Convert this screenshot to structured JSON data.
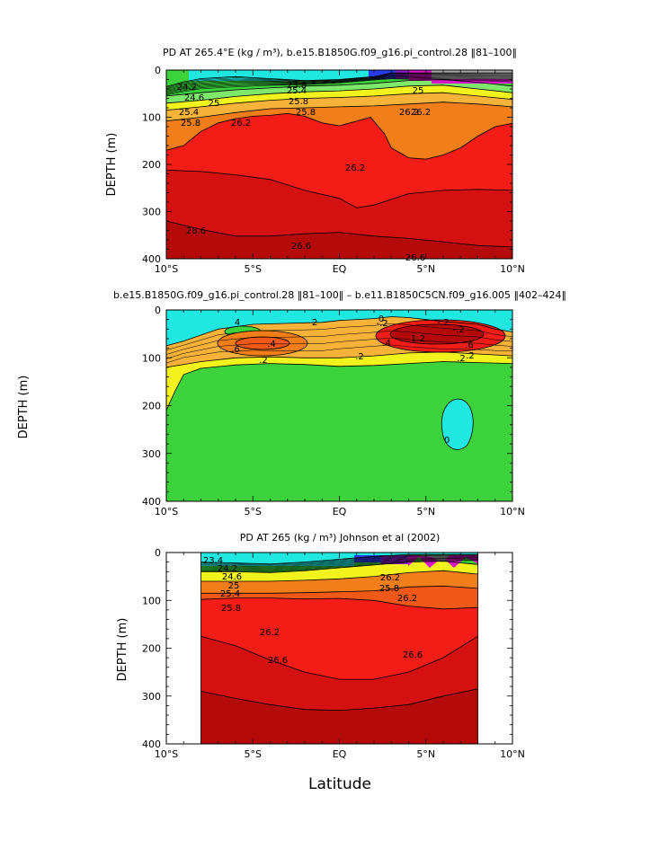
{
  "colors": {
    "gray": "#a8a8a8",
    "magenta": "#d815c8",
    "purple": "#8a1ec8",
    "blue": "#2a3cf0",
    "cyan": "#20e8e0",
    "green": "#3cd23c",
    "ltgreen": "#7ee86a",
    "yellow": "#f2f21c",
    "ltorange": "#f7b23a",
    "orange": "#f27e1a",
    "dkorange": "#f05818",
    "red": "#f41c16",
    "dkred": "#d41010",
    "dkred2": "#b40a0a"
  },
  "chart_data": [
    {
      "type": "contour",
      "title": "PD AT 265.4°E (kg / m³), b.e15.B1850G.f09_g16.pi_control.28 ‖81–100‖",
      "xlabel": "",
      "ylabel": "DEPTH (m)",
      "xlim": [
        -10,
        10
      ],
      "ylim": [
        400,
        0
      ],
      "x_ticks": [
        "10°S",
        "5°S",
        "EQ",
        "5°N",
        "10°N"
      ],
      "y_ticks": [
        "0",
        "100",
        "200",
        "300",
        "400"
      ],
      "contour_labels": [
        "23.8",
        "24.2",
        "24.6",
        "25",
        "25.4",
        "25.8",
        "26.2",
        "26.2",
        "26.2",
        "26.6",
        "26.6",
        "26.6",
        "25.4",
        "25.8",
        "25.8",
        "26.2",
        "25"
      ],
      "levels": [
        {
          "value": 26.6,
          "boundary": [
            [
              -10,
              320
            ],
            [
              -8,
              338
            ],
            [
              -6,
              352
            ],
            [
              -4,
              352
            ],
            [
              -2,
              347
            ],
            [
              0,
              344
            ],
            [
              2,
              352
            ],
            [
              4,
              357
            ],
            [
              6,
              364
            ],
            [
              8,
              372
            ],
            [
              10,
              375
            ]
          ]
        },
        {
          "value": 26.4,
          "boundary": [
            [
              -10,
              212
            ],
            [
              -8,
              215
            ],
            [
              -6,
              222
            ],
            [
              -4,
              232
            ],
            [
              -2,
              255
            ],
            [
              0,
              272
            ],
            [
              1,
              292
            ],
            [
              2,
              286
            ],
            [
              4,
              262
            ],
            [
              6,
              255
            ],
            [
              8,
              253
            ],
            [
              10,
              255
            ]
          ]
        },
        {
          "value": 26.2,
          "boundary": [
            [
              -10,
              170
            ],
            [
              -9,
              160
            ],
            [
              -8,
              130
            ],
            [
              -7,
              112
            ],
            [
              -6,
              103
            ],
            [
              -5,
              98
            ],
            [
              -4,
              96
            ],
            [
              -3,
              92
            ],
            [
              -2,
              98
            ],
            [
              -1,
              112
            ],
            [
              0,
              118
            ],
            [
              1,
              108
            ],
            [
              1.8,
              100
            ],
            [
              2.6,
              135
            ],
            [
              3,
              165
            ],
            [
              4,
              186
            ],
            [
              5,
              189
            ],
            [
              6,
              180
            ],
            [
              7,
              165
            ],
            [
              8,
              140
            ],
            [
              9,
              120
            ],
            [
              10,
              113
            ]
          ]
        },
        {
          "value": 26.0,
          "boundary": [
            [
              -10,
              108
            ],
            [
              -8,
              100
            ],
            [
              -6,
              90
            ],
            [
              -4,
              82
            ],
            [
              -2,
              80
            ],
            [
              0,
              78
            ],
            [
              2,
              76
            ],
            [
              4,
              72
            ],
            [
              6,
              68
            ],
            [
              8,
              72
            ],
            [
              10,
              78
            ]
          ]
        },
        {
          "value": 25.4,
          "boundary": [
            [
              -10,
              85
            ],
            [
              -8,
              78
            ],
            [
              -6,
              70
            ],
            [
              -4,
              64
            ],
            [
              -2,
              60
            ],
            [
              0,
              58
            ],
            [
              2,
              55
            ],
            [
              4,
              50
            ],
            [
              6,
              48
            ],
            [
              8,
              55
            ],
            [
              10,
              62
            ]
          ]
        },
        {
          "value": 25.0,
          "boundary": [
            [
              -10,
              70
            ],
            [
              -8,
              64
            ],
            [
              -6,
              56
            ],
            [
              -4,
              50
            ],
            [
              -2,
              46
            ],
            [
              0,
              44
            ],
            [
              2,
              40
            ],
            [
              4,
              34
            ],
            [
              6,
              32
            ],
            [
              8,
              40
            ],
            [
              10,
              48
            ]
          ]
        },
        {
          "value": 24.6,
          "boundary": [
            [
              -10,
              55
            ],
            [
              -8,
              48
            ],
            [
              -6,
              42
            ],
            [
              -4,
              38
            ],
            [
              -2,
              34
            ],
            [
              0,
              32
            ],
            [
              2,
              28
            ],
            [
              4,
              22
            ],
            [
              6,
              20
            ],
            [
              8,
              26
            ],
            [
              10,
              34
            ]
          ]
        },
        {
          "value": 24.0,
          "boundary": [
            [
              -10,
              35
            ],
            [
              -9,
              25
            ],
            [
              -8,
              18
            ],
            [
              -6,
              14
            ],
            [
              -4,
              18
            ],
            [
              -2,
              22
            ],
            [
              0,
              20
            ],
            [
              2,
              14
            ],
            [
              3,
              6
            ],
            [
              10,
              6
            ]
          ]
        }
      ]
    },
    {
      "type": "contour",
      "title": "b.e15.B1850G.f09_g16.pi_control.28 ‖81–100‖ – b.e11.B1850C5CN.f09_g16.005 ‖402–424‖",
      "xlabel": "",
      "ylabel": "DEPTH (m)",
      "xlim": [
        -10,
        10
      ],
      "ylim": [
        400,
        0
      ],
      "x_ticks": [
        "10°S",
        "5°S",
        "EQ",
        "5°N",
        "10°N"
      ],
      "y_ticks": [
        "0",
        "100",
        "200",
        "300",
        "400"
      ],
      "contour_labels": [
        "4",
        "2",
        "-.2",
        ".6",
        ".4",
        ".2",
        ".2",
        ".4",
        ".2",
        "0",
        "-.2",
        "1.2",
        ".6",
        ".2",
        "-.2",
        "0"
      ],
      "levels": [
        {
          "value": -0.2,
          "boundary": [
            [
              -10,
              210
            ],
            [
              -9.5,
              170
            ],
            [
              -9,
              135
            ],
            [
              -8,
              122
            ],
            [
              -6,
              115
            ],
            [
              -4,
              112
            ],
            [
              -2,
              114
            ],
            [
              0,
              118
            ],
            [
              2,
              116
            ],
            [
              4,
              112
            ],
            [
              6,
              108
            ],
            [
              8,
              110
            ],
            [
              10,
              112
            ]
          ]
        },
        {
          "value": 0.0,
          "boundary": [
            [
              -10,
              120
            ],
            [
              -8,
              108
            ],
            [
              -6,
              100
            ],
            [
              -4,
              98
            ],
            [
              -2,
              100
            ],
            [
              0,
              100
            ],
            [
              2,
              96
            ],
            [
              4,
              90
            ],
            [
              6,
              88
            ],
            [
              8,
              92
            ],
            [
              10,
              96
            ]
          ]
        },
        {
          "value": 0.2,
          "boundary": [
            [
              -10,
              75
            ],
            [
              -9,
              65
            ],
            [
              -7,
              40
            ],
            [
              -5,
              30
            ],
            [
              -3,
              28
            ],
            [
              -1,
              26
            ],
            [
              0,
              22
            ],
            [
              2,
              18
            ],
            [
              3,
              14
            ],
            [
              4,
              16
            ],
            [
              6,
              24
            ],
            [
              8,
              30
            ],
            [
              9,
              40
            ],
            [
              10,
              46
            ]
          ]
        }
      ]
    },
    {
      "type": "contour",
      "title": "PD AT 265 (kg / m³) Johnson et al (2002)",
      "xlabel": "Latitude",
      "ylabel": "DEPTH (m)",
      "xlim": [
        -10,
        10
      ],
      "ylim": [
        400,
        0
      ],
      "x_ticks": [
        "10°S",
        "5°S",
        "EQ",
        "5°N",
        "10°N"
      ],
      "y_ticks": [
        "0",
        "100",
        "200",
        "300",
        "400"
      ],
      "data_xrange": [
        -8,
        8
      ],
      "contour_labels": [
        "23.4",
        "24.2",
        "24.6",
        "25",
        "25.4",
        "25.8",
        "26.2",
        "26.2",
        "26.6",
        "26.6",
        "25.8",
        "26.2"
      ],
      "levels": [
        {
          "value": 26.6,
          "boundary": [
            [
              -8,
              290
            ],
            [
              -6,
              305
            ],
            [
              -4,
              318
            ],
            [
              -2,
              328
            ],
            [
              0,
              330
            ],
            [
              2,
              325
            ],
            [
              4,
              318
            ],
            [
              6,
              300
            ],
            [
              8,
              285
            ]
          ]
        },
        {
          "value": 26.4,
          "boundary": [
            [
              -8,
              175
            ],
            [
              -6,
              195
            ],
            [
              -4,
              225
            ],
            [
              -2,
              250
            ],
            [
              0,
              265
            ],
            [
              2,
              265
            ],
            [
              4,
              250
            ],
            [
              6,
              220
            ],
            [
              8,
              175
            ]
          ]
        },
        {
          "value": 26.2,
          "boundary": [
            [
              -8,
              98
            ],
            [
              -6,
              95
            ],
            [
              -4,
              95
            ],
            [
              -2,
              97
            ],
            [
              0,
              96
            ],
            [
              2,
              100
            ],
            [
              4,
              112
            ],
            [
              6,
              118
            ],
            [
              8,
              115
            ]
          ]
        },
        {
          "value": 26.0,
          "boundary": [
            [
              -8,
              85
            ],
            [
              -6,
              85
            ],
            [
              -4,
              85
            ],
            [
              -2,
              84
            ],
            [
              0,
              82
            ],
            [
              2,
              80
            ],
            [
              4,
              72
            ],
            [
              6,
              70
            ],
            [
              8,
              75
            ]
          ]
        },
        {
          "value": 25.4,
          "boundary": [
            [
              -8,
              60
            ],
            [
              -6,
              60
            ],
            [
              -4,
              60
            ],
            [
              -2,
              58
            ],
            [
              0,
              55
            ],
            [
              2,
              50
            ],
            [
              4,
              42
            ],
            [
              6,
              38
            ],
            [
              8,
              45
            ]
          ]
        },
        {
          "value": 24.6,
          "boundary": [
            [
              -8,
              40
            ],
            [
              -6,
              40
            ],
            [
              -4,
              42
            ],
            [
              -2,
              38
            ],
            [
              0,
              32
            ],
            [
              2,
              26
            ],
            [
              4,
              20
            ],
            [
              6,
              18
            ],
            [
              8,
              25
            ]
          ]
        },
        {
          "value": 23.8,
          "boundary": [
            [
              -8,
              20
            ],
            [
              -6,
              22
            ],
            [
              -4,
              24
            ],
            [
              -2,
              20
            ],
            [
              0,
              14
            ],
            [
              2,
              8
            ],
            [
              4,
              4
            ],
            [
              8,
              4
            ]
          ]
        }
      ]
    }
  ]
}
